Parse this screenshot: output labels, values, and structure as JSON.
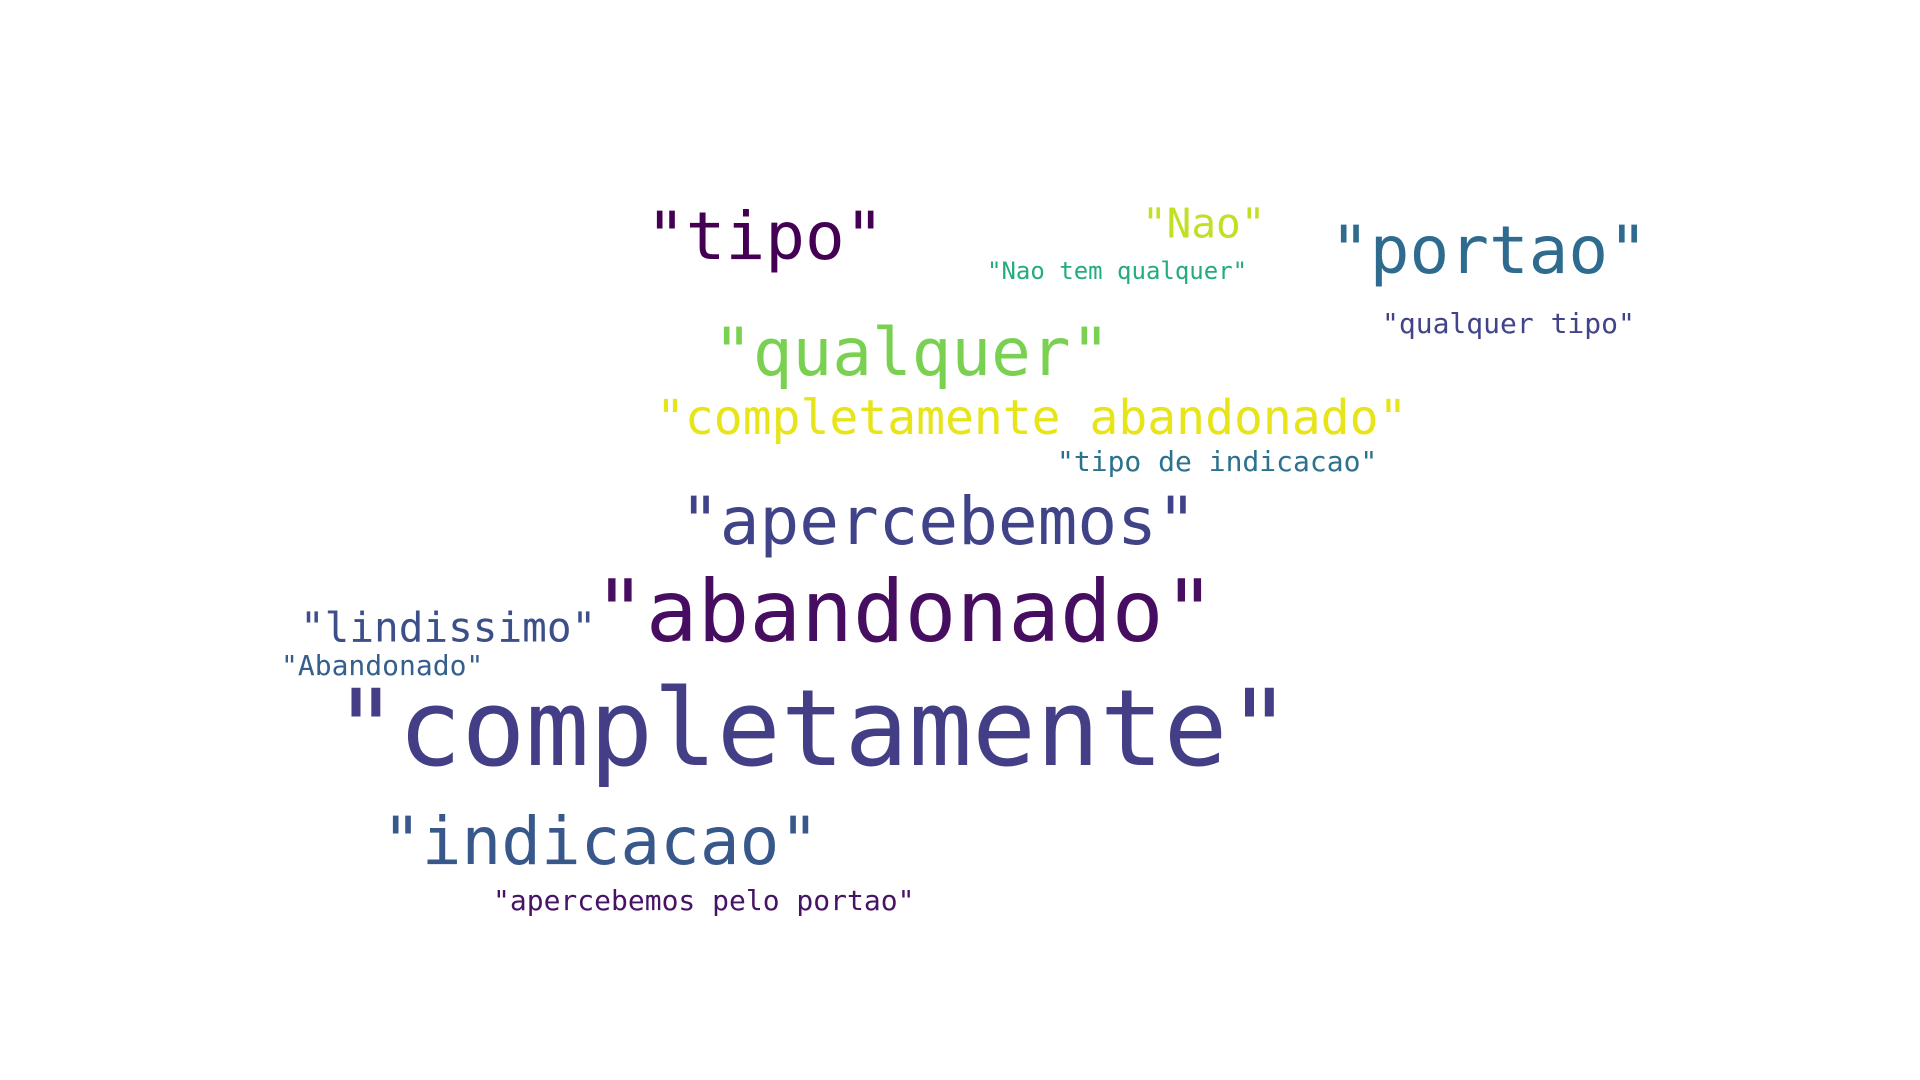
{
  "words": [
    {
      "text": "\"completamente\"",
      "color": "#433e85"
    },
    {
      "text": "\"abandonado\"",
      "color": "#470d60"
    },
    {
      "text": "\"apercebemos\"",
      "color": "#404387"
    },
    {
      "text": "\"indicacao\"",
      "color": "#38588c"
    },
    {
      "text": "\"portao\"",
      "color": "#2f6b8e"
    },
    {
      "text": "\"tipo\"",
      "color": "#440154"
    },
    {
      "text": "\"qualquer\"",
      "color": "#7ad151"
    },
    {
      "text": "\"completamente abandonado\"",
      "color": "#e7e419"
    },
    {
      "text": "\"lindissimo\"",
      "color": "#3c4f8a"
    },
    {
      "text": "\"Nao\"",
      "color": "#c2df23"
    },
    {
      "text": "\"qualquer tipo\"",
      "color": "#414487"
    },
    {
      "text": "\"tipo de indicacao\"",
      "color": "#2c728e"
    },
    {
      "text": "\"apercebemos pelo portao\"",
      "color": "#471365"
    },
    {
      "text": "\"Abandonado\"",
      "color": "#355f8d"
    },
    {
      "text": "\"Nao tem qualquer\"",
      "color": "#25ab82"
    }
  ]
}
